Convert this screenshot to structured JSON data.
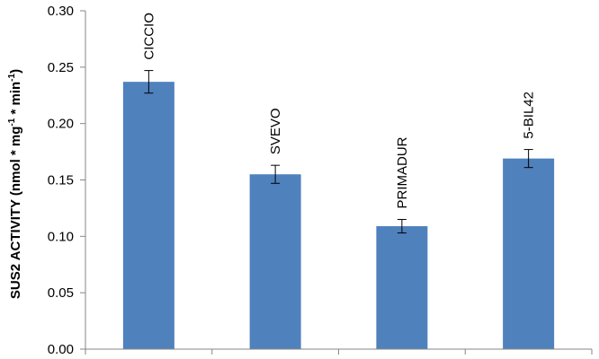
{
  "chart_data": {
    "type": "bar",
    "categories": [
      "CICCIO",
      "SVEVO",
      "PRIMADUR",
      "5-BIL42"
    ],
    "values": [
      0.237,
      0.155,
      0.109,
      0.169
    ],
    "errors": [
      0.01,
      0.008,
      0.006,
      0.008
    ],
    "ylabel": {
      "main": "SUS2 ACTIVITY (nmol * mg",
      "sup1": "-1",
      "mid": " * min",
      "sup2": "-1",
      "end": ")"
    },
    "ylim": [
      0,
      0.3
    ],
    "yticks": [
      "0.00",
      "0.05",
      "0.10",
      "0.15",
      "0.20",
      "0.25",
      "0.30"
    ],
    "bar_color": "#4f81bd",
    "axis_color": "#868686",
    "grid": false,
    "legend": "none"
  }
}
